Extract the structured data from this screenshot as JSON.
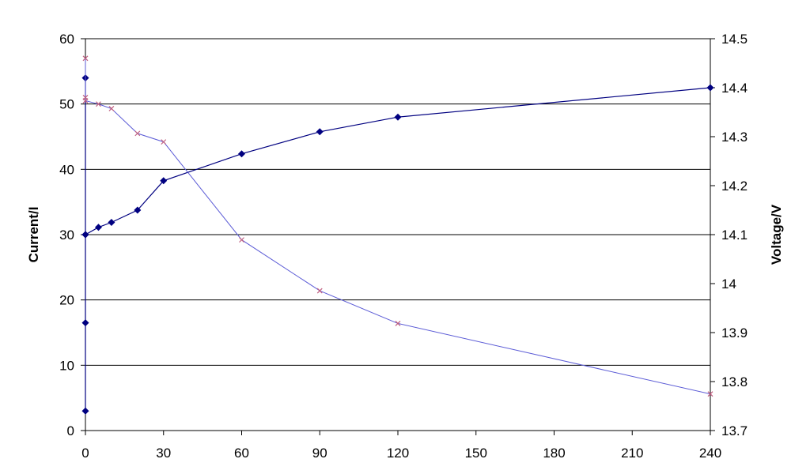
{
  "chart_data": {
    "type": "line",
    "xlabel": "",
    "ylabel": "Current/I",
    "y2label": "Voltage/V",
    "xlim": [
      0,
      240
    ],
    "ylim": [
      0,
      60
    ],
    "y2lim": [
      13.7,
      14.5
    ],
    "x_ticks": [
      0,
      30,
      60,
      90,
      120,
      150,
      180,
      210,
      240
    ],
    "y_ticks": [
      0,
      10,
      20,
      30,
      40,
      50,
      60
    ],
    "y2_ticks": [
      "13.7",
      "13.8",
      "13.9",
      "14",
      "14.1",
      "14.2",
      "14.3",
      "14.4",
      "14.5"
    ],
    "grid": true,
    "series": [
      {
        "axis": "right",
        "marker": "diamond",
        "color": "#000080",
        "x": [
          0,
          0,
          0,
          0,
          0,
          5,
          10,
          20,
          30,
          60,
          90,
          120,
          240
        ],
        "y": [
          13.74,
          13.92,
          14.42,
          14.1,
          14.1,
          14.115,
          14.125,
          14.15,
          14.21,
          14.265,
          14.31,
          14.34,
          14.4
        ]
      },
      {
        "axis": "left",
        "marker": "x",
        "color": "#5b5bd6",
        "marker_color": "#c06080",
        "x": [
          0,
          0,
          0,
          5,
          10,
          20,
          30,
          60,
          90,
          120,
          240
        ],
        "y": [
          57,
          51,
          50.5,
          50,
          49.3,
          45.5,
          44.2,
          29.2,
          21.4,
          16.4,
          5.6
        ]
      }
    ]
  }
}
